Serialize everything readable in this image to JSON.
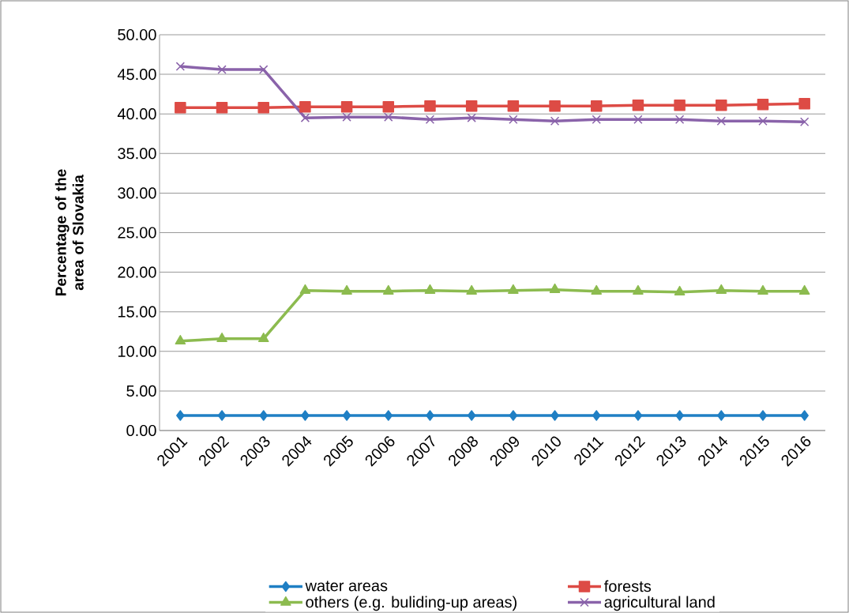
{
  "chart_data": {
    "type": "line",
    "ylabel": "Percentage of the area of Slovakia",
    "categories": [
      "2001",
      "2002",
      "2003",
      "2004",
      "2005",
      "2006",
      "2007",
      "2008",
      "2009",
      "2010",
      "2011",
      "2012",
      "2013",
      "2014",
      "2015",
      "2016"
    ],
    "series": [
      {
        "name": "water areas",
        "color": "#1f7fc4",
        "marker": "diamond",
        "values": [
          1.9,
          1.9,
          1.9,
          1.9,
          1.9,
          1.9,
          1.9,
          1.9,
          1.9,
          1.9,
          1.9,
          1.9,
          1.9,
          1.9,
          1.9,
          1.9
        ]
      },
      {
        "name": "forests",
        "color": "#dd4b45",
        "marker": "square",
        "values": [
          40.8,
          40.8,
          40.8,
          40.9,
          40.9,
          40.9,
          41.0,
          41.0,
          41.0,
          41.0,
          41.0,
          41.1,
          41.1,
          41.1,
          41.2,
          41.3
        ]
      },
      {
        "name": "others (e.g. buliding-up areas)",
        "color": "#8cbb4f",
        "marker": "triangle",
        "values": [
          11.3,
          11.6,
          11.6,
          17.7,
          17.6,
          17.6,
          17.7,
          17.6,
          17.7,
          17.8,
          17.6,
          17.6,
          17.5,
          17.7,
          17.6,
          17.6
        ]
      },
      {
        "name": "agricultural land",
        "color": "#8a63aa",
        "marker": "cross",
        "values": [
          46.0,
          45.6,
          45.6,
          39.5,
          39.6,
          39.6,
          39.3,
          39.5,
          39.3,
          39.1,
          39.3,
          39.3,
          39.3,
          39.1,
          39.1,
          39.0
        ]
      }
    ],
    "ylim": [
      0,
      50
    ],
    "yticks": [
      {
        "value": 0,
        "label": "0.00"
      },
      {
        "value": 5,
        "label": "5.00"
      },
      {
        "value": 10,
        "label": "10.00"
      },
      {
        "value": 15,
        "label": "15.00"
      },
      {
        "value": 20,
        "label": "20.00"
      },
      {
        "value": 25,
        "label": "25.00"
      },
      {
        "value": 30,
        "label": "30.00"
      },
      {
        "value": 35,
        "label": "35.00"
      },
      {
        "value": 40,
        "label": "40.00"
      },
      {
        "value": 45,
        "label": "45.00"
      },
      {
        "value": 50,
        "label": "50.00"
      }
    ],
    "grid": "y",
    "legend": "bottom"
  }
}
